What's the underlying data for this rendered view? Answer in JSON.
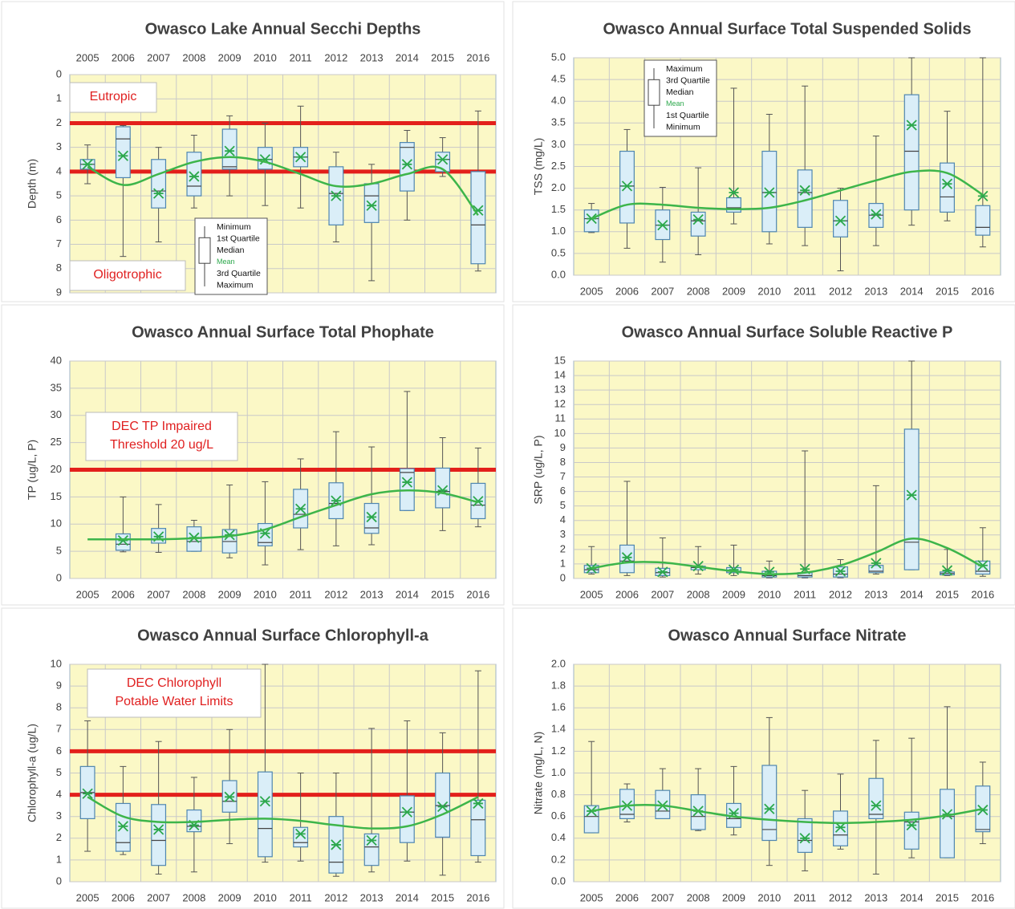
{
  "chart_data": [
    {
      "type": "box",
      "title": "Owasco Lake Annual Secchi Depths",
      "ylabel": "Depth (m)",
      "xaxis": "top",
      "invert_y": true,
      "grid": true,
      "categories": [
        "2005",
        "2006",
        "2007",
        "2008",
        "2009",
        "2010",
        "2011",
        "2012",
        "2013",
        "2014",
        "2015",
        "2016"
      ],
      "min": [
        2.9,
        2.1,
        3.0,
        2.5,
        1.7,
        2.0,
        1.3,
        3.2,
        3.7,
        2.3,
        2.6,
        1.5
      ],
      "q1": [
        3.5,
        2.15,
        3.5,
        3.2,
        2.25,
        3.0,
        3.0,
        3.8,
        4.5,
        2.8,
        3.2,
        4.0
      ],
      "median": [
        3.7,
        2.65,
        4.8,
        4.6,
        3.8,
        3.5,
        3.4,
        4.9,
        5.0,
        3.0,
        3.5,
        6.2
      ],
      "q3": [
        3.9,
        4.25,
        5.5,
        5.0,
        3.9,
        3.9,
        3.8,
        6.2,
        6.1,
        4.8,
        4.0,
        7.8
      ],
      "max": [
        4.5,
        7.5,
        6.9,
        5.5,
        5.0,
        5.4,
        5.5,
        6.9,
        8.5,
        6.0,
        4.2,
        8.1
      ],
      "mean": [
        3.7,
        3.35,
        4.9,
        4.2,
        3.15,
        3.5,
        3.4,
        5.0,
        5.4,
        3.7,
        3.5,
        5.6
      ],
      "trend": [
        3.8,
        4.55,
        4.1,
        3.6,
        3.4,
        3.6,
        4.1,
        4.6,
        4.5,
        4.1,
        3.9,
        5.8
      ],
      "ylim": [
        0,
        9
      ],
      "yticks": [
        0,
        1,
        2,
        3,
        4,
        5,
        6,
        7,
        8,
        9
      ],
      "reference_lines": [
        2,
        4
      ],
      "annotations": [
        {
          "text": [
            "Eutropic"
          ]
        },
        {
          "text": [
            "Oligotrophic"
          ]
        }
      ],
      "legend": [
        "Minimum",
        "1st Quartile",
        "Median",
        "Mean",
        "3rd Quartile",
        "Maximum"
      ],
      "plot_color": "#fbf8c6",
      "box_fill": "#daeef8",
      "box_stroke": "#4f86b0",
      "mean_color": "#2ca84c",
      "trend_color": "#3db54a",
      "reference_color": "#e3201b"
    },
    {
      "type": "box",
      "title": "Owasco Annual Surface Total Suspended Solids",
      "ylabel": "TSS (mg/L)",
      "xaxis": "bottom",
      "invert_y": false,
      "grid": true,
      "categories": [
        "2005",
        "2006",
        "2007",
        "2008",
        "2009",
        "2010",
        "2011",
        "2012",
        "2013",
        "2014",
        "2015",
        "2016"
      ],
      "min": [
        0.98,
        0.62,
        0.3,
        0.47,
        1.18,
        0.72,
        0.68,
        0.1,
        0.68,
        1.15,
        1.25,
        0.65
      ],
      "q1": [
        1.0,
        1.2,
        0.82,
        0.9,
        1.45,
        1.0,
        1.1,
        0.88,
        1.1,
        1.5,
        1.45,
        0.92
      ],
      "median": [
        1.3,
        2.05,
        1.15,
        1.25,
        1.55,
        1.9,
        1.9,
        1.25,
        1.38,
        2.85,
        1.8,
        1.1
      ],
      "q3": [
        1.5,
        2.85,
        1.5,
        1.45,
        1.78,
        2.85,
        2.42,
        1.72,
        1.65,
        4.15,
        2.58,
        1.6
      ],
      "max": [
        1.65,
        3.35,
        2.02,
        2.47,
        4.3,
        3.7,
        4.35,
        2.0,
        3.2,
        5.0,
        3.77,
        5.0
      ],
      "mean": [
        1.3,
        2.05,
        1.15,
        1.28,
        1.9,
        1.9,
        1.95,
        1.25,
        1.4,
        3.45,
        2.1,
        1.82
      ],
      "trend": [
        1.3,
        1.62,
        1.62,
        1.55,
        1.52,
        1.55,
        1.72,
        1.95,
        2.18,
        2.38,
        2.35,
        1.85
      ],
      "ylim": [
        0,
        5
      ],
      "yticks": [
        {
          "value": 0,
          "label": "0.0"
        },
        0.5,
        {
          "value": 1,
          "label": "1.0"
        },
        1.5,
        {
          "value": 2,
          "label": "2.0"
        },
        2.5,
        {
          "value": 3,
          "label": "3.0"
        },
        3.5,
        {
          "value": 4,
          "label": "4.0"
        },
        4.5,
        {
          "value": 5,
          "label": "5.0"
        }
      ],
      "reference_lines": [],
      "annotations": [],
      "legend": [
        "Maximum",
        "3rd Quartile",
        "Median",
        "Mean",
        "1st Quartile",
        "Minimum"
      ],
      "plot_color": "#fbf8c6",
      "box_fill": "#daeef8",
      "box_stroke": "#4f86b0",
      "mean_color": "#2ca84c",
      "trend_color": "#3db54a",
      "reference_color": "#e3201b"
    },
    {
      "type": "box",
      "title": "Owasco Annual Surface Total Phophate",
      "ylabel": "TP (ug/L, P)",
      "xaxis": "bottom",
      "invert_y": false,
      "grid": true,
      "categories": [
        "2005",
        "2006",
        "2007",
        "2008",
        "2009",
        "2010",
        "2011",
        "2012",
        "2013",
        "2014",
        "2015",
        "2016"
      ],
      "min": [
        null,
        4.9,
        4.8,
        5.0,
        3.8,
        2.5,
        5.3,
        6.0,
        6.2,
        12.5,
        8.8,
        9.5
      ],
      "q1": [
        null,
        5.2,
        6.5,
        5.0,
        4.7,
        6.0,
        9.3,
        11.0,
        8.3,
        12.5,
        13.0,
        11.0
      ],
      "median": [
        null,
        6.3,
        7.2,
        6.8,
        6.8,
        6.6,
        11.8,
        13.8,
        9.3,
        19.5,
        16.0,
        13.5
      ],
      "q3": [
        null,
        8.2,
        9.2,
        9.5,
        9.0,
        10.1,
        16.4,
        17.6,
        13.8,
        20.2,
        20.3,
        17.5
      ],
      "max": [
        null,
        15,
        13.6,
        10.7,
        17.2,
        17.8,
        22.0,
        27.0,
        24.2,
        34.4,
        25.9,
        24.0
      ],
      "mean": [
        null,
        7.0,
        7.7,
        7.5,
        8.0,
        8.3,
        12.8,
        14.3,
        11.3,
        17.7,
        16.2,
        14.2
      ],
      "trend": [
        7.2,
        7.2,
        7.2,
        7.4,
        7.8,
        9.0,
        11.3,
        13.5,
        15.5,
        16.2,
        15.7,
        14.0
      ],
      "ylim": [
        0,
        40
      ],
      "yticks": [
        0,
        5,
        10,
        15,
        20,
        25,
        30,
        35,
        40
      ],
      "reference_lines": [
        20
      ],
      "annotations": [
        {
          "text": [
            "DEC TP  Impaired",
            "Threshold 20 ug/L"
          ]
        }
      ],
      "legend": [],
      "plot_color": "#fbf8c6",
      "box_fill": "#daeef8",
      "box_stroke": "#4f86b0",
      "mean_color": "#2ca84c",
      "trend_color": "#3db54a",
      "reference_color": "#e3201b"
    },
    {
      "type": "box",
      "title": "Owasco Annual Surface Soluble Reactive P",
      "ylabel": "SRP (ug/L, P)",
      "xaxis": "bottom",
      "invert_y": false,
      "grid": true,
      "categories": [
        "2005",
        "2006",
        "2007",
        "2008",
        "2009",
        "2010",
        "2011",
        "2012",
        "2013",
        "2014",
        "2015",
        "2016"
      ],
      "min": [
        0.3,
        0.2,
        0.1,
        0.3,
        0.2,
        0.05,
        0.05,
        0.05,
        0.3,
        0.6,
        0.2,
        0.15
      ],
      "q1": [
        0.4,
        0.4,
        0.2,
        0.6,
        0.4,
        0.1,
        0.1,
        0.1,
        0.4,
        0.6,
        0.25,
        0.3
      ],
      "median": [
        0.6,
        1.2,
        0.4,
        0.75,
        0.5,
        0.2,
        0.2,
        0.3,
        0.5,
        2.5,
        0.35,
        0.5
      ],
      "q3": [
        0.9,
        2.3,
        0.7,
        0.85,
        0.75,
        0.5,
        0.4,
        0.8,
        0.9,
        10.3,
        0.45,
        1.2
      ],
      "max": [
        2.2,
        6.7,
        2.8,
        2.2,
        2.3,
        1.2,
        8.8,
        1.3,
        6.4,
        15,
        2.0,
        3.5
      ],
      "mean": [
        0.7,
        1.45,
        0.45,
        0.85,
        0.6,
        0.45,
        0.65,
        0.5,
        1.05,
        5.75,
        0.55,
        0.9
      ],
      "trend": [
        0.7,
        1.1,
        1.1,
        0.8,
        0.5,
        0.3,
        0.4,
        0.9,
        1.8,
        2.75,
        2.1,
        0.8
      ],
      "ylim": [
        0,
        15
      ],
      "yticks": [
        0,
        1,
        2,
        3,
        4,
        5,
        6,
        7,
        8,
        9,
        10,
        11,
        12,
        13,
        14,
        15
      ],
      "reference_lines": [],
      "annotations": [],
      "legend": [],
      "plot_color": "#fbf8c6",
      "box_fill": "#daeef8",
      "box_stroke": "#4f86b0",
      "mean_color": "#2ca84c",
      "trend_color": "#3db54a",
      "reference_color": "#e3201b"
    },
    {
      "type": "box",
      "title": "Owasco Annual Surface Chlorophyll-a",
      "ylabel": "Chlorophyll-a (ug/L)",
      "xaxis": "bottom",
      "invert_y": false,
      "grid": true,
      "categories": [
        "2005",
        "2006",
        "2007",
        "2008",
        "2009",
        "2010",
        "2011",
        "2012",
        "2013",
        "2014",
        "2015",
        "2016"
      ],
      "min": [
        1.4,
        1.25,
        0.35,
        0.45,
        1.75,
        0.9,
        0.95,
        0.25,
        0.45,
        0.95,
        0.3,
        0.9
      ],
      "q1": [
        2.9,
        1.4,
        0.75,
        2.3,
        3.2,
        1.15,
        1.6,
        0.4,
        0.75,
        1.8,
        2.05,
        1.2
      ],
      "median": [
        4.1,
        1.8,
        1.9,
        2.55,
        3.7,
        2.45,
        1.8,
        0.9,
        1.6,
        3.2,
        3.5,
        2.85
      ],
      "q3": [
        5.3,
        3.6,
        3.55,
        3.3,
        4.65,
        5.05,
        2.5,
        3.0,
        2.2,
        3.95,
        5.0,
        3.75
      ],
      "max": [
        7.4,
        5.3,
        6.45,
        4.8,
        7.0,
        10,
        5.0,
        5.0,
        7.05,
        7.4,
        6.85,
        9.7
      ],
      "mean": [
        4.05,
        2.55,
        2.4,
        2.6,
        3.9,
        3.7,
        2.2,
        1.7,
        1.9,
        3.2,
        3.45,
        3.6
      ],
      "trend": [
        3.9,
        3.0,
        2.75,
        2.75,
        2.85,
        2.9,
        2.8,
        2.6,
        2.45,
        2.55,
        3.1,
        3.9
      ],
      "ylim": [
        0,
        10
      ],
      "yticks": [
        0,
        1,
        2,
        3,
        4,
        5,
        6,
        7,
        8,
        9,
        10
      ],
      "reference_lines": [
        4,
        6
      ],
      "annotations": [
        {
          "text": [
            "DEC Chlorophyll",
            "Potable Water Limits"
          ]
        }
      ],
      "legend": [],
      "plot_color": "#fbf8c6",
      "box_fill": "#daeef8",
      "box_stroke": "#4f86b0",
      "mean_color": "#2ca84c",
      "trend_color": "#3db54a",
      "reference_color": "#e3201b"
    },
    {
      "type": "box",
      "title": "Owasco Annual Surface Nitrate",
      "ylabel": "Nitrate (mg/L, N)",
      "xaxis": "bottom",
      "invert_y": false,
      "grid": true,
      "categories": [
        "2005",
        "2006",
        "2007",
        "2008",
        "2009",
        "2010",
        "2011",
        "2012",
        "2013",
        "2014",
        "2015",
        "2016"
      ],
      "min": [
        0.45,
        0.55,
        0.58,
        0.47,
        0.43,
        0.15,
        0.1,
        0.3,
        0.07,
        0.22,
        0.22,
        0.35
      ],
      "q1": [
        0.45,
        0.58,
        0.58,
        0.48,
        0.5,
        0.38,
        0.27,
        0.33,
        0.58,
        0.3,
        0.22,
        0.46
      ],
      "median": [
        0.6,
        0.62,
        0.65,
        0.6,
        0.58,
        0.48,
        0.38,
        0.43,
        0.62,
        0.55,
        0.6,
        0.48
      ],
      "q3": [
        0.7,
        0.85,
        0.84,
        0.8,
        0.72,
        1.07,
        0.58,
        0.65,
        0.95,
        0.64,
        0.85,
        0.88
      ],
      "max": [
        1.29,
        0.9,
        1.04,
        1.04,
        1.06,
        1.51,
        0.84,
        0.99,
        1.3,
        1.32,
        1.61,
        1.1
      ],
      "mean": [
        0.65,
        0.7,
        0.7,
        0.65,
        0.63,
        0.67,
        0.4,
        0.5,
        0.7,
        0.52,
        0.62,
        0.66
      ],
      "trend": [
        0.65,
        0.7,
        0.7,
        0.65,
        0.6,
        0.57,
        0.55,
        0.54,
        0.55,
        0.57,
        0.61,
        0.67
      ],
      "ylim": [
        0,
        2
      ],
      "yticks": [
        {
          "value": 0,
          "label": "0.0"
        },
        0.2,
        0.4,
        0.6,
        0.8,
        {
          "value": 1,
          "label": "1.0"
        },
        1.2,
        1.4,
        1.6,
        1.8,
        {
          "value": 2,
          "label": "2.0"
        }
      ],
      "reference_lines": [],
      "annotations": [],
      "legend": [],
      "plot_color": "#fbf8c6",
      "box_fill": "#daeef8",
      "box_stroke": "#4f86b0",
      "mean_color": "#2ca84c",
      "trend_color": "#3db54a",
      "reference_color": "#e3201b"
    }
  ]
}
